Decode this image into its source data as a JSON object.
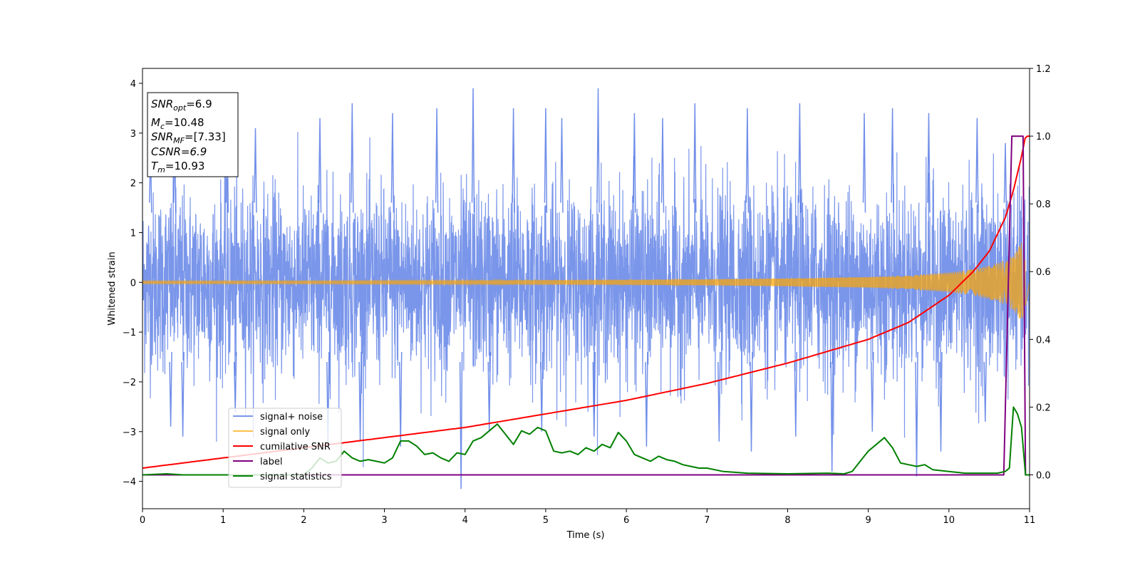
{
  "chart_data": {
    "type": "line",
    "xlabel": "Time (s)",
    "ylabel": "Whitened strain",
    "xlim": [
      0,
      11
    ],
    "ylim_left": [
      -4.55,
      4.3
    ],
    "ylim_right": [
      -0.1,
      1.2
    ],
    "xticks": [
      "0",
      "1",
      "2",
      "3",
      "4",
      "5",
      "6",
      "7",
      "8",
      "9",
      "10",
      "11"
    ],
    "yticks_left": [
      "4",
      "3",
      "2",
      "1",
      "0",
      "−1",
      "−2",
      "−3",
      "−4"
    ],
    "yticks_right": [
      "1.2",
      "1.0",
      "0.8",
      "0.6",
      "0.4",
      "0.2",
      "0.0"
    ],
    "legend_position": "lower-left",
    "legend": [
      "signal+ noise",
      "signal only",
      "cumilative SNR",
      "label",
      "signal statistics"
    ],
    "colors": {
      "noise": "#4169e1",
      "signal": "#ffa500",
      "csnr": "#ff0000",
      "label": "#800080",
      "stats": "#008000"
    },
    "info_box": {
      "snr_opt": {
        "sym": "SNR",
        "sub": "opt",
        "val": "=6.9"
      },
      "mc": {
        "sym": "M",
        "sub": "c",
        "val": "=10.48"
      },
      "snr_mf": {
        "sym": "SNR",
        "sub": "MF",
        "val": "=[7.33]"
      },
      "csnr": {
        "text": "CSNR=6.9"
      },
      "tm": {
        "sym": "T",
        "sub": "m",
        "val": "=10.93"
      }
    },
    "series": [
      {
        "name": "signal+ noise",
        "axis": "left",
        "envelope": {
          "x": [
            0,
            1,
            2,
            3,
            4,
            5,
            6,
            7,
            8,
            9,
            10,
            10.8,
            11
          ],
          "upper_typical": [
            2.3,
            2.4,
            2.4,
            2.4,
            2.4,
            2.4,
            2.4,
            2.4,
            2.4,
            2.4,
            2.4,
            2.5,
            2.4
          ],
          "lower_typical": [
            -2.3,
            -2.3,
            -2.4,
            -2.4,
            -2.4,
            -2.4,
            -2.4,
            -2.4,
            -2.4,
            -2.4,
            -2.4,
            -2.5,
            -2.4
          ]
        },
        "peaks": [
          [
            0.1,
            2.7
          ],
          [
            0.4,
            2.9
          ],
          [
            1.05,
            3.3
          ],
          [
            1.4,
            3.1
          ],
          [
            2.2,
            3.3
          ],
          [
            2.6,
            3.6
          ],
          [
            3.1,
            3.4
          ],
          [
            3.65,
            3.5
          ],
          [
            4.1,
            3.9
          ],
          [
            4.6,
            3.5
          ],
          [
            5.0,
            3.5
          ],
          [
            5.2,
            3.3
          ],
          [
            5.65,
            3.9
          ],
          [
            6.1,
            3.4
          ],
          [
            6.45,
            3.3
          ],
          [
            6.85,
            3.6
          ],
          [
            7.5,
            3.5
          ],
          [
            8.15,
            3.6
          ],
          [
            8.95,
            3.4
          ],
          [
            9.3,
            3.5
          ],
          [
            9.75,
            3.4
          ],
          [
            10.35,
            3.3
          ],
          [
            10.7,
            2.8
          ]
        ],
        "troughs": [
          [
            0.35,
            -2.9
          ],
          [
            0.5,
            -3.1
          ],
          [
            1.15,
            -2.6
          ],
          [
            2.3,
            -3.3
          ],
          [
            2.7,
            -3.2
          ],
          [
            3.2,
            -3.3
          ],
          [
            3.95,
            -4.15
          ],
          [
            4.3,
            -3.0
          ],
          [
            4.95,
            -3.0
          ],
          [
            5.6,
            -3.1
          ],
          [
            6.25,
            -3.3
          ],
          [
            7.15,
            -3.2
          ],
          [
            7.55,
            -3.4
          ],
          [
            8.1,
            -3.1
          ],
          [
            8.55,
            -3.8
          ],
          [
            9.05,
            -3.0
          ],
          [
            9.6,
            -3.9
          ],
          [
            9.9,
            -3.4
          ],
          [
            10.45,
            -2.8
          ]
        ]
      },
      {
        "name": "signal only",
        "axis": "left",
        "envelope": {
          "x": [
            0,
            2,
            4,
            6,
            7,
            8,
            9,
            9.5,
            10,
            10.3,
            10.6,
            10.8,
            10.9,
            10.95,
            11
          ],
          "amp": [
            0.03,
            0.03,
            0.04,
            0.05,
            0.06,
            0.08,
            0.11,
            0.14,
            0.2,
            0.26,
            0.38,
            0.55,
            0.8,
            0.5,
            0.0
          ]
        }
      },
      {
        "name": "cumilative SNR",
        "axis": "right",
        "x": [
          0,
          1,
          2,
          3,
          4,
          5,
          6,
          7,
          8,
          9,
          9.5,
          10,
          10.3,
          10.5,
          10.7,
          10.8,
          10.9,
          10.95,
          11
        ],
        "y": [
          0.02,
          0.05,
          0.08,
          0.11,
          0.14,
          0.18,
          0.22,
          0.27,
          0.33,
          0.4,
          0.45,
          0.53,
          0.6,
          0.66,
          0.76,
          0.84,
          0.94,
          1.0,
          1.0
        ]
      },
      {
        "name": "label",
        "axis": "right",
        "x": [
          0,
          10.68,
          10.78,
          10.92,
          10.95,
          11
        ],
        "y": [
          0.0,
          0.0,
          1.0,
          1.0,
          0.0,
          0.0
        ]
      },
      {
        "name": "signal statistics",
        "axis": "right",
        "x": [
          0,
          0.3,
          0.5,
          1,
          1.5,
          2,
          2.1,
          2.2,
          2.3,
          2.4,
          2.5,
          2.6,
          2.7,
          2.8,
          2.9,
          3.0,
          3.1,
          3.2,
          3.3,
          3.4,
          3.5,
          3.6,
          3.7,
          3.8,
          3.9,
          4.0,
          4.1,
          4.2,
          4.3,
          4.4,
          4.5,
          4.6,
          4.7,
          4.8,
          4.9,
          5.0,
          5.1,
          5.2,
          5.3,
          5.4,
          5.5,
          5.6,
          5.7,
          5.8,
          5.9,
          6.0,
          6.1,
          6.2,
          6.3,
          6.4,
          6.5,
          6.6,
          6.7,
          6.8,
          6.9,
          7.0,
          7.2,
          7.5,
          8.0,
          8.5,
          8.7,
          8.8,
          8.9,
          9.0,
          9.1,
          9.2,
          9.3,
          9.4,
          9.5,
          9.6,
          9.7,
          9.8,
          10.0,
          10.2,
          10.5,
          10.6,
          10.7,
          10.75,
          10.8,
          10.85,
          10.9,
          10.95,
          11.0
        ],
        "y": [
          0.0,
          0.003,
          0.0,
          0.0,
          0.0,
          0.0,
          0.02,
          0.05,
          0.035,
          0.04,
          0.07,
          0.05,
          0.04,
          0.045,
          0.04,
          0.035,
          0.05,
          0.1,
          0.1,
          0.085,
          0.06,
          0.065,
          0.05,
          0.04,
          0.065,
          0.06,
          0.1,
          0.11,
          0.13,
          0.15,
          0.12,
          0.09,
          0.13,
          0.12,
          0.14,
          0.13,
          0.07,
          0.065,
          0.07,
          0.06,
          0.08,
          0.07,
          0.09,
          0.08,
          0.125,
          0.1,
          0.06,
          0.05,
          0.04,
          0.055,
          0.045,
          0.04,
          0.03,
          0.025,
          0.02,
          0.02,
          0.01,
          0.005,
          0.003,
          0.005,
          0.003,
          0.01,
          0.04,
          0.07,
          0.09,
          0.11,
          0.08,
          0.035,
          0.03,
          0.025,
          0.03,
          0.015,
          0.01,
          0.005,
          0.005,
          0.005,
          0.01,
          0.02,
          0.2,
          0.18,
          0.14,
          0.0,
          0.0
        ]
      }
    ]
  }
}
